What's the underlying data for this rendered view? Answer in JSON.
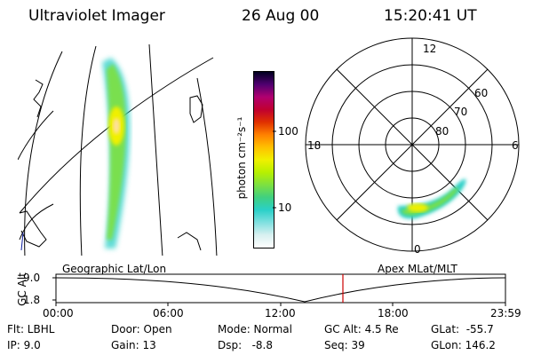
{
  "header": {
    "instrument": "Ultraviolet Imager",
    "date": "26 Aug 00",
    "time": "15:20:41 UT"
  },
  "colorbar": {
    "unit_label": "photon cm⁻²s⁻¹",
    "ticks": [
      "100",
      "10"
    ],
    "colors": [
      "#ffffff",
      "#d8f0f0",
      "#80e0e0",
      "#2ad0c8",
      "#40d080",
      "#7de040",
      "#b8f000",
      "#f0f000",
      "#ffc000",
      "#ff8000",
      "#e03000",
      "#c00030",
      "#b00070",
      "#500070",
      "#000020"
    ]
  },
  "polar": {
    "lat_labels": [
      "60",
      "70",
      "80"
    ],
    "mlt_labels": {
      "top": "12",
      "left": "18",
      "right": "6",
      "bottom": "0"
    }
  },
  "strip": {
    "left_title": "Geographic Lat/Lon",
    "right_title": "Apex MLat/MLT",
    "axis_label": "GC Alt",
    "y_ticks": [
      "9.0",
      "1.8"
    ],
    "x_ticks": [
      "00:00",
      "06:00",
      "12:00",
      "18:00",
      "23:59"
    ],
    "marker_color": "#cc0000"
  },
  "status": {
    "flt": "Flt: LBHL",
    "ip": "IP:  9.0",
    "door": "Door: Open",
    "gain": "Gain: 13",
    "mode": "Mode: Normal",
    "dsp": "Dsp:   -8.8",
    "gcalt": "GC Alt: 4.5 Re",
    "seq": "Seq: 39",
    "glat": "GLat:  -55.7",
    "glon": "GLon: 146.2"
  }
}
